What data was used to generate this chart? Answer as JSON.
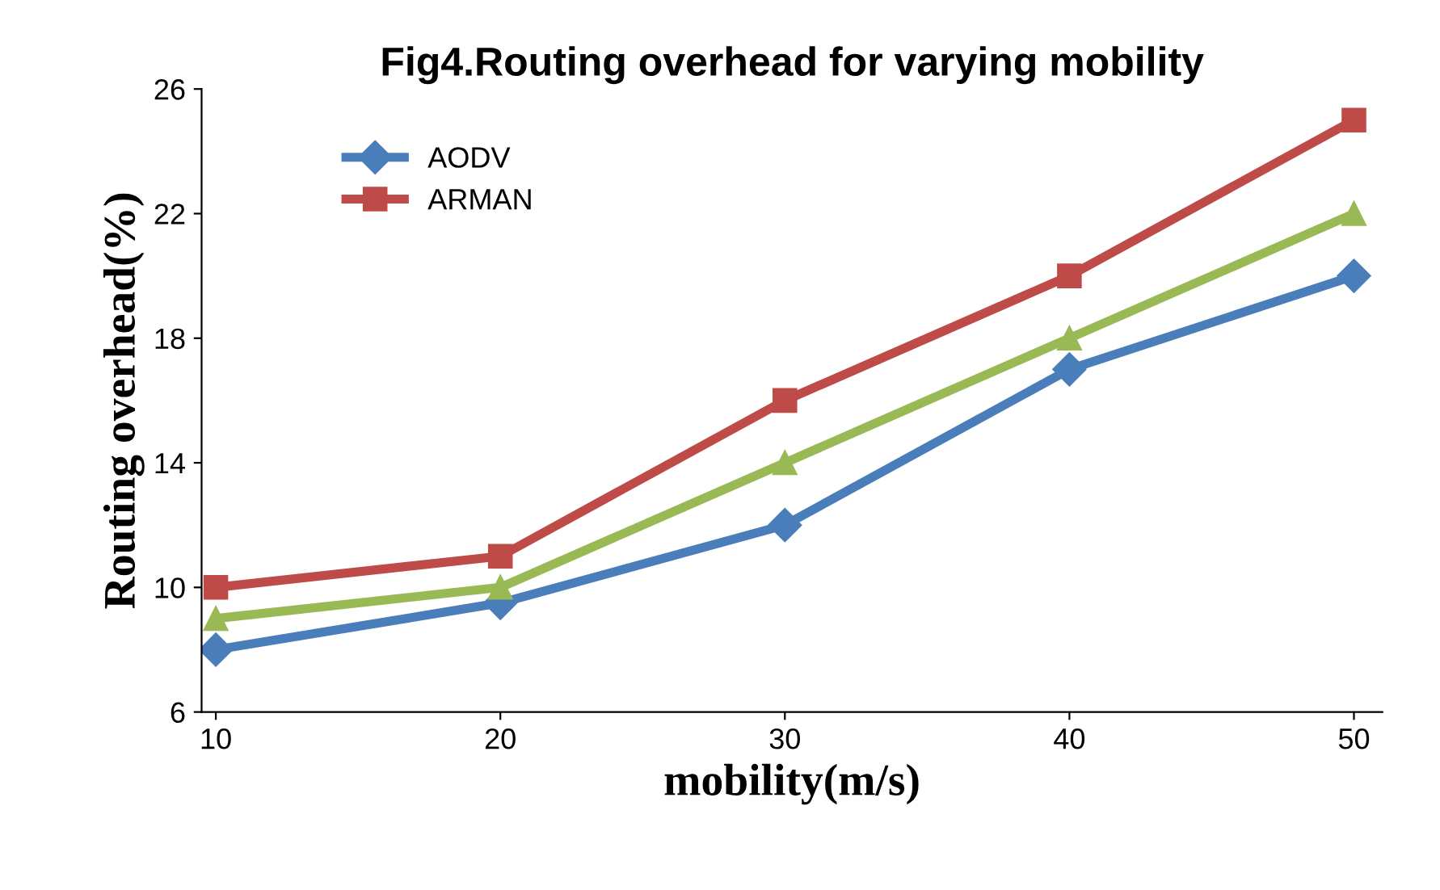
{
  "chart_data": {
    "type": "line",
    "title": "Fig4.Routing overhead for varying mobility",
    "xlabel": "mobility(m/s)",
    "ylabel": "Routing overhead(%)",
    "categories": [
      "10",
      "20",
      "30",
      "40",
      "50"
    ],
    "ylim": [
      6,
      26
    ],
    "yticks": [
      6,
      10,
      14,
      18,
      22,
      26
    ],
    "grid": false,
    "legend": "top left",
    "line_style": "solid",
    "series": [
      {
        "name": "AODV",
        "color": "#4a7ebb",
        "marker": "diamond",
        "values": [
          8,
          9.5,
          12,
          17,
          20
        ]
      },
      {
        "name": "ARMAN",
        "color": "#be4b48",
        "marker": "square",
        "values": [
          10,
          11,
          16,
          20,
          25
        ]
      },
      {
        "color": "#98b954",
        "marker": "triangle",
        "values": [
          9,
          10,
          14,
          18,
          22
        ]
      }
    ]
  }
}
